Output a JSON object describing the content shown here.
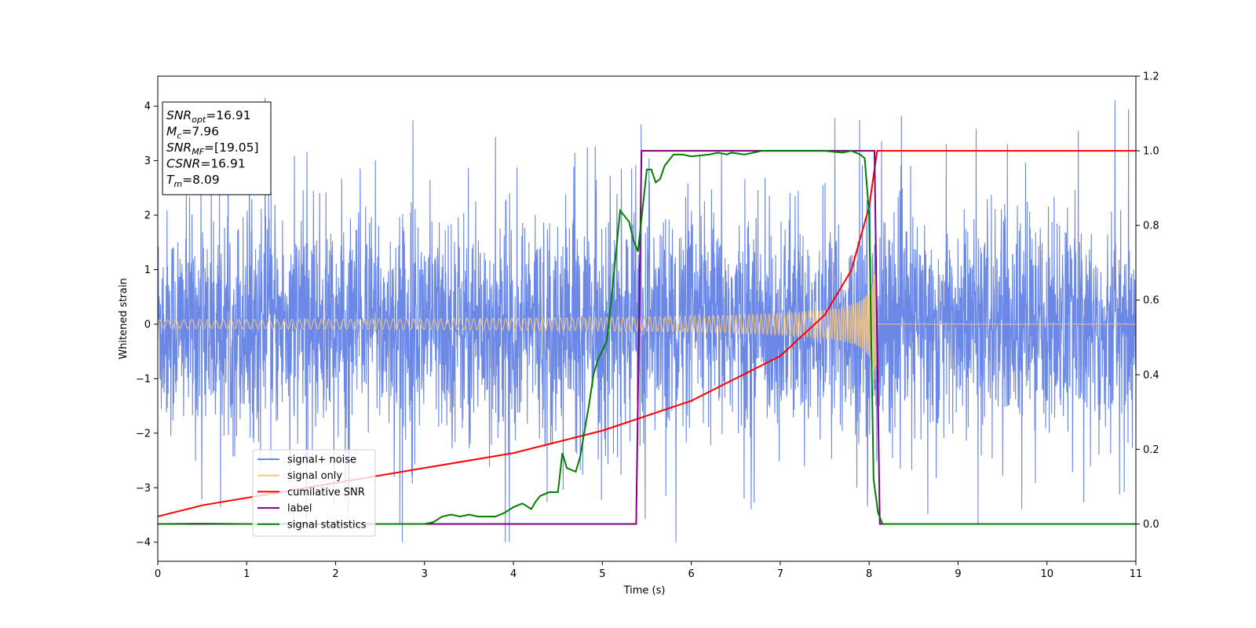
{
  "chart_data": {
    "type": "line",
    "xlabel": "Time (s)",
    "ylabel": "Whitened strain",
    "xlim": [
      0,
      11
    ],
    "ylim_left": [
      -4.35,
      4.55
    ],
    "ylim_right": [
      -0.1,
      1.2
    ],
    "x_ticks": [
      0,
      1,
      2,
      3,
      4,
      5,
      6,
      7,
      8,
      9,
      10,
      11
    ],
    "y_ticks_left": [
      -4,
      -3,
      -2,
      -1,
      0,
      1,
      2,
      3,
      4
    ],
    "y_ticks_right": [
      0.0,
      0.2,
      0.4,
      0.6,
      0.8,
      1.0,
      1.2
    ],
    "grid": false,
    "legend_position": "lower-left",
    "series": [
      {
        "name": "signal+ noise",
        "axis": "left",
        "color": "#6b88e6",
        "style": "dense noise, roughly within ±2.5 with spikes near ±4",
        "noise_sigma": 1.0,
        "spike_max": 4.2
      },
      {
        "name": "signal only",
        "axis": "left",
        "color": "#f5c77e",
        "style": "chirp; amplitude rises from ~0.08 to ~1.05, ends at merger",
        "t_merger": 8.09
      },
      {
        "name": "cumilative SNR",
        "axis": "right",
        "color": "#ff0000",
        "points": [
          [
            0,
            0.02
          ],
          [
            0.5,
            0.05
          ],
          [
            1,
            0.07
          ],
          [
            2,
            0.11
          ],
          [
            3,
            0.15
          ],
          [
            4,
            0.19
          ],
          [
            5,
            0.25
          ],
          [
            6,
            0.33
          ],
          [
            7,
            0.45
          ],
          [
            7.5,
            0.56
          ],
          [
            7.8,
            0.68
          ],
          [
            8.0,
            0.85
          ],
          [
            8.09,
            1.0
          ],
          [
            11,
            1.0
          ]
        ]
      },
      {
        "name": "label",
        "axis": "right",
        "color": "#800080",
        "points": [
          [
            0,
            0
          ],
          [
            5.38,
            0
          ],
          [
            5.44,
            1
          ],
          [
            8.06,
            1
          ],
          [
            8.12,
            0
          ],
          [
            11,
            0
          ]
        ]
      },
      {
        "name": "signal statistics",
        "axis": "right",
        "color": "#008000",
        "points": [
          [
            0,
            0
          ],
          [
            0.5,
            0.001
          ],
          [
            1.0,
            0.0
          ],
          [
            2.0,
            0.0
          ],
          [
            2.5,
            0.0
          ],
          [
            3.0,
            0.0
          ],
          [
            3.1,
            0.005
          ],
          [
            3.2,
            0.02
          ],
          [
            3.3,
            0.025
          ],
          [
            3.4,
            0.02
          ],
          [
            3.5,
            0.025
          ],
          [
            3.6,
            0.02
          ],
          [
            3.8,
            0.02
          ],
          [
            3.9,
            0.03
          ],
          [
            4.0,
            0.045
          ],
          [
            4.1,
            0.055
          ],
          [
            4.2,
            0.04
          ],
          [
            4.25,
            0.06
          ],
          [
            4.3,
            0.075
          ],
          [
            4.4,
            0.085
          ],
          [
            4.5,
            0.085
          ],
          [
            4.55,
            0.19
          ],
          [
            4.6,
            0.15
          ],
          [
            4.7,
            0.14
          ],
          [
            4.75,
            0.18
          ],
          [
            4.8,
            0.25
          ],
          [
            4.85,
            0.32
          ],
          [
            4.9,
            0.4
          ],
          [
            4.95,
            0.44
          ],
          [
            5.05,
            0.49
          ],
          [
            5.1,
            0.6
          ],
          [
            5.15,
            0.72
          ],
          [
            5.2,
            0.84
          ],
          [
            5.3,
            0.81
          ],
          [
            5.35,
            0.76
          ],
          [
            5.4,
            0.73
          ],
          [
            5.45,
            0.84
          ],
          [
            5.5,
            0.95
          ],
          [
            5.55,
            0.95
          ],
          [
            5.6,
            0.915
          ],
          [
            5.65,
            0.925
          ],
          [
            5.7,
            0.96
          ],
          [
            5.8,
            0.99
          ],
          [
            5.9,
            0.99
          ],
          [
            6.0,
            0.985
          ],
          [
            6.2,
            0.99
          ],
          [
            6.3,
            0.995
          ],
          [
            6.4,
            0.99
          ],
          [
            6.45,
            0.995
          ],
          [
            6.6,
            0.99
          ],
          [
            6.8,
            1.0
          ],
          [
            7.0,
            1.0
          ],
          [
            7.5,
            1.0
          ],
          [
            7.7,
            0.995
          ],
          [
            7.8,
            1.0
          ],
          [
            7.9,
            0.99
          ],
          [
            7.95,
            0.98
          ],
          [
            8.0,
            0.83
          ],
          [
            8.05,
            0.12
          ],
          [
            8.1,
            0.03
          ],
          [
            8.15,
            0.0
          ],
          [
            11,
            0.0
          ]
        ]
      }
    ],
    "annotation": {
      "lines": [
        {
          "label": "SNR",
          "sub": "opt",
          "value": "=16.91"
        },
        {
          "label": "M",
          "sub": "c",
          "value": "=7.96"
        },
        {
          "label": "SNR",
          "sub": "MF",
          "value": "=[19.05]"
        },
        {
          "label": "CSNR",
          "sub": "",
          "value": "=16.91"
        },
        {
          "label": "T",
          "sub": "m",
          "value": "=8.09"
        }
      ]
    }
  }
}
